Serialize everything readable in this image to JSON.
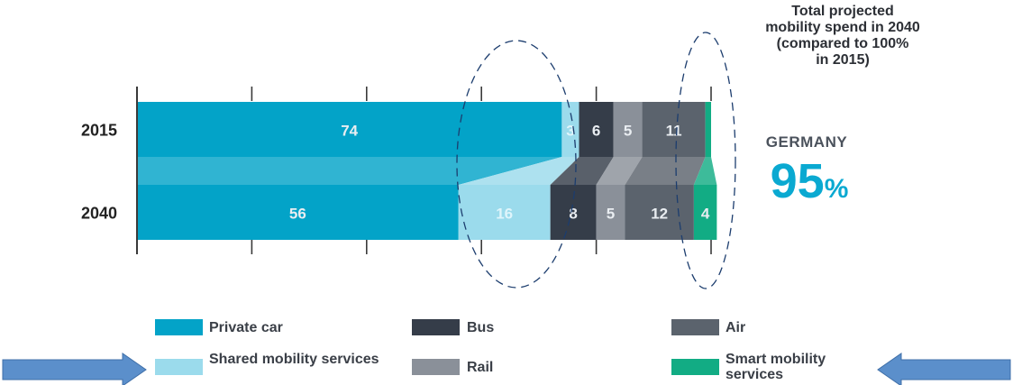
{
  "chart_data": {
    "type": "bar",
    "orientation": "horizontal",
    "stacked": true,
    "title": "Total projected\nmobility spend in 2040\n(compared to 100%\nin 2015)",
    "categories": [
      "2015",
      "2040"
    ],
    "series": [
      {
        "name": "Private car",
        "color": "#03a3c8",
        "values": [
          74,
          56
        ],
        "labels": [
          "74",
          "56"
        ]
      },
      {
        "name": "Shared mobility services",
        "color": "#9bdbec",
        "values": [
          3,
          16
        ],
        "labels": [
          "3",
          "16"
        ]
      },
      {
        "name": "Bus",
        "color": "#353d49",
        "values": [
          6,
          8
        ],
        "labels": [
          "6",
          "8"
        ]
      },
      {
        "name": "Rail",
        "color": "#8a9099",
        "values": [
          5,
          5
        ],
        "labels": [
          "5",
          "5"
        ]
      },
      {
        "name": "Air",
        "color": "#5b636d",
        "values": [
          11,
          12
        ],
        "labels": [
          "11",
          "12"
        ]
      },
      {
        "name": "Smart mobility services",
        "color": "#12ac84",
        "values": [
          1,
          4
        ],
        "labels": [
          "",
          "4"
        ]
      }
    ],
    "xlim": [
      0,
      100
    ],
    "grid": false,
    "legend_position": "bottom"
  },
  "region": "GERMANY",
  "total_value": "95",
  "total_unit": "%",
  "colors": {
    "private_car": "#03a3c8",
    "shared_mobility": "#9bdbec",
    "bus": "#353d49",
    "rail": "#8a9099",
    "air": "#5b636d",
    "smart_mobility": "#12ac84",
    "arrow": "#5b8fcb",
    "highlight_total": "#0aa9d1"
  },
  "legend": [
    {
      "label": "Private car",
      "icon": "swatch-private-car"
    },
    {
      "label": "Shared mobility services",
      "icon": "swatch-shared-mobility"
    },
    {
      "label": "Bus",
      "icon": "swatch-bus"
    },
    {
      "label": "Rail",
      "icon": "swatch-rail"
    },
    {
      "label": "Air",
      "icon": "swatch-air"
    },
    {
      "label": "Smart mobility services",
      "icon": "swatch-smart-mobility"
    }
  ]
}
